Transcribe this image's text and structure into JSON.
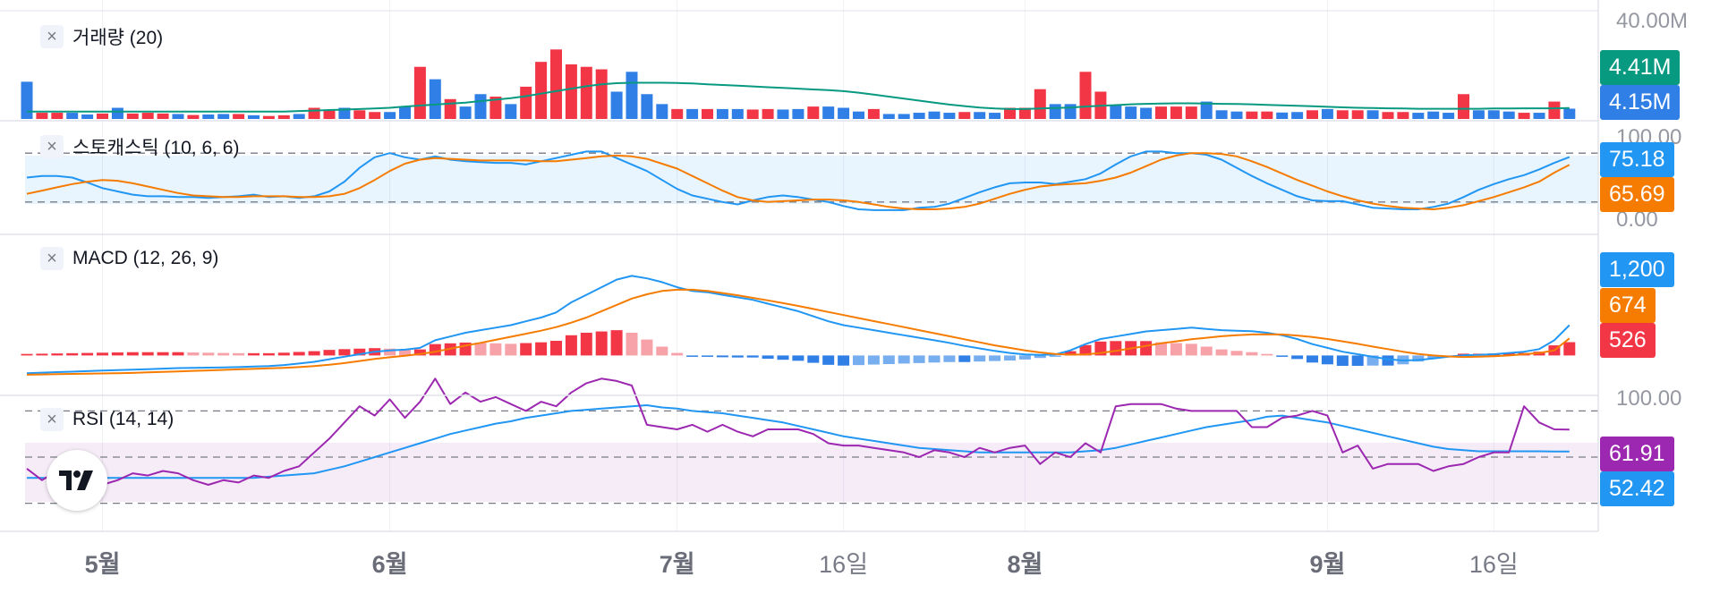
{
  "panes": [
    {
      "id": "volume",
      "label": "거래량 (20)"
    },
    {
      "id": "stoch",
      "label": "스토캐스틱 (10, 6, 6)"
    },
    {
      "id": "macd",
      "label": "MACD (12, 26, 9)"
    },
    {
      "id": "rsi",
      "label": "RSI (14, 14)"
    }
  ],
  "close_icon": "×",
  "scale_labels": {
    "volume_top": "40.00M",
    "stoch_top": "100.00",
    "stoch_bottom": "0.00",
    "rsi_top": "100.00"
  },
  "badges": {
    "volume_ma": {
      "text": "4.41M",
      "color": "#089981"
    },
    "volume": {
      "text": "4.15M",
      "color": "#2f7fe6"
    },
    "stoch_k": {
      "text": "75.18",
      "color": "#2196f3"
    },
    "stoch_d": {
      "text": "65.69",
      "color": "#f57c00"
    },
    "macd": {
      "text": "1,200",
      "color": "#2196f3"
    },
    "signal": {
      "text": "674",
      "color": "#f57c00"
    },
    "hist": {
      "text": "526",
      "color": "#f23645"
    },
    "rsi": {
      "text": "61.91",
      "color": "#9c27b0"
    },
    "rsi_ma": {
      "text": "52.42",
      "color": "#2196f3"
    }
  },
  "x_axis_labels": [
    {
      "text": "5월",
      "index": 5,
      "bold": true
    },
    {
      "text": "6월",
      "index": 24,
      "bold": true
    },
    {
      "text": "7월",
      "index": 43,
      "bold": true
    },
    {
      "text": "16일",
      "index": 54,
      "bold": false
    },
    {
      "text": "8월",
      "index": 66,
      "bold": true
    },
    {
      "text": "9월",
      "index": 86,
      "bold": true
    },
    {
      "text": "16일",
      "index": 97,
      "bold": false
    }
  ],
  "logo_icon": "tradingview-logo-icon",
  "chart_data": {
    "type": "line",
    "count": 103,
    "colors": {
      "up": "#f23645",
      "down": "#2f7fe6",
      "vol_ma": "#089981",
      "k": "#2196f3",
      "d": "#f57c00",
      "macd": "#2196f3",
      "signal": "#f57c00",
      "rsi": "#9c27b0",
      "rsi_ma": "#2196f3",
      "hist_up_strong": "#f23645",
      "hist_up_weak": "#f7a1a8",
      "hist_dn_strong": "#2f7fe6",
      "hist_dn_weak": "#77aef0"
    },
    "volume": {
      "ylim": [
        0,
        40
      ],
      "unit": "M",
      "values": [
        15,
        2.5,
        2.5,
        2.5,
        1.8,
        2.2,
        4.5,
        2.2,
        2.5,
        2.2,
        2,
        1.6,
        1.8,
        2,
        2,
        1.5,
        1.2,
        1.5,
        2,
        4.5,
        3.8,
        4.5,
        3.5,
        2.8,
        2.8,
        5,
        21,
        16,
        8,
        5,
        10,
        9,
        6,
        13,
        23,
        28,
        22,
        21,
        20,
        11,
        19,
        10,
        6,
        4,
        4,
        4,
        4,
        4,
        3.8,
        4,
        3.8,
        4,
        5,
        5,
        4.5,
        3,
        4,
        2,
        2,
        2.5,
        3,
        2.5,
        2.8,
        2.8,
        2.5,
        4.5,
        4.5,
        12,
        6,
        6,
        19,
        11,
        5.5,
        5,
        4.5,
        5,
        5,
        5,
        7,
        3.5,
        3,
        3,
        3,
        2.6,
        2.8,
        3.5,
        4,
        3.5,
        3.5,
        3.5,
        2.8,
        2.8,
        2.5,
        3,
        2.5,
        10,
        3.5,
        3.5,
        3,
        2.5,
        2.5,
        7,
        4.15
      ],
      "up": [
        0,
        1,
        1,
        0,
        0,
        1,
        0,
        1,
        1,
        1,
        0,
        1,
        0,
        0,
        1,
        0,
        1,
        1,
        0,
        1,
        1,
        0,
        1,
        1,
        0,
        0,
        1,
        0,
        1,
        0,
        0,
        1,
        0,
        1,
        1,
        1,
        1,
        1,
        1,
        0,
        0,
        0,
        0,
        1,
        0,
        1,
        0,
        0,
        1,
        1,
        0,
        0,
        1,
        0,
        0,
        0,
        1,
        0,
        0,
        0,
        0,
        0,
        1,
        0,
        0,
        1,
        1,
        1,
        0,
        0,
        1,
        1,
        0,
        0,
        0,
        1,
        1,
        1,
        0,
        0,
        0,
        1,
        1,
        0,
        0,
        1,
        0,
        1,
        1,
        0,
        1,
        1,
        0,
        0,
        0,
        1,
        0,
        0,
        0,
        1,
        0,
        1,
        0
      ],
      "ma": [
        3,
        3,
        3,
        3,
        3,
        3,
        3,
        3,
        3,
        3,
        3,
        3,
        3,
        3,
        3,
        3,
        3,
        3,
        3.2,
        3.4,
        3.6,
        3.8,
        4,
        4.2,
        4.5,
        5,
        5.4,
        5.8,
        6.2,
        6.6,
        7.2,
        7.8,
        8.4,
        9.2,
        10.2,
        11.2,
        12.2,
        13.2,
        14,
        14.4,
        14.6,
        14.6,
        14.6,
        14.5,
        14.3,
        14,
        13.7,
        13.4,
        13.1,
        12.8,
        12.5,
        12.2,
        11.9,
        11.6,
        11.2,
        10.6,
        9.8,
        9,
        8.2,
        7.4,
        6.6,
        5.8,
        5.2,
        4.6,
        4.2,
        4,
        4,
        4.2,
        4.4,
        4.6,
        5,
        5.3,
        5.6,
        5.9,
        6.1,
        6.2,
        6.3,
        6.3,
        6.2,
        6.1,
        6,
        5.9,
        5.7,
        5.5,
        5.3,
        5.1,
        4.9,
        4.7,
        4.5,
        4.4,
        4.3,
        4.2,
        4.1,
        4.1,
        4.1,
        4.1,
        4.1,
        4.2,
        4.2,
        4.3,
        4.3,
        4.3,
        4.41
      ]
    },
    "stochastic": {
      "ylim": [
        0,
        100
      ],
      "bands": [
        80,
        20
      ],
      "k": [
        50,
        52,
        52,
        50,
        44,
        37,
        33,
        29,
        27,
        27,
        26,
        26,
        25,
        26,
        27,
        29,
        26,
        27,
        25,
        27,
        33,
        45,
        62,
        75,
        80,
        75,
        72,
        76,
        72,
        70,
        69,
        68,
        68,
        66,
        70,
        74,
        78,
        82,
        82,
        74,
        66,
        58,
        47,
        36,
        28,
        24,
        20,
        17,
        22,
        26,
        28,
        26,
        23,
        20,
        15,
        11,
        10,
        10,
        10,
        13,
        14,
        18,
        25,
        32,
        38,
        43,
        44,
        44,
        42,
        45,
        48,
        55,
        66,
        76,
        82,
        82,
        80,
        80,
        78,
        72,
        62,
        52,
        43,
        35,
        27,
        22,
        21,
        21,
        17,
        13,
        12,
        11,
        11,
        14,
        18,
        26,
        35,
        42,
        48,
        53,
        60,
        68,
        75.18
      ],
      "d": [
        30,
        34,
        38,
        42,
        45,
        47,
        46,
        43,
        39,
        35,
        31,
        28,
        27,
        26,
        26,
        27,
        27,
        27,
        26,
        26,
        27,
        30,
        37,
        47,
        58,
        67,
        72,
        74,
        73,
        72,
        71,
        71,
        71,
        71,
        70,
        70,
        72,
        74,
        76,
        77,
        76,
        73,
        67,
        61,
        52,
        43,
        34,
        26,
        22,
        20,
        21,
        22,
        23,
        23,
        22,
        20,
        17,
        14,
        12,
        11,
        11,
        12,
        14,
        18,
        24,
        30,
        35,
        39,
        41,
        42,
        43,
        46,
        50,
        56,
        64,
        72,
        77,
        80,
        80,
        79,
        76,
        70,
        63,
        55,
        47,
        40,
        33,
        27,
        22,
        18,
        15,
        13,
        12,
        11,
        13,
        16,
        21,
        26,
        32,
        38,
        45,
        56,
        65.69
      ]
    },
    "macd": {
      "ylim": [
        -800,
        3800
      ],
      "macd": [
        -700,
        -680,
        -660,
        -640,
        -620,
        -600,
        -580,
        -560,
        -540,
        -520,
        -500,
        -490,
        -480,
        -470,
        -460,
        -440,
        -420,
        -380,
        -320,
        -250,
        -150,
        -50,
        50,
        150,
        200,
        230,
        300,
        600,
        750,
        900,
        1000,
        1100,
        1200,
        1350,
        1500,
        1700,
        2100,
        2400,
        2700,
        3000,
        3150,
        3050,
        2900,
        2700,
        2550,
        2500,
        2400,
        2300,
        2200,
        2050,
        1900,
        1750,
        1550,
        1350,
        1200,
        1100,
        1000,
        900,
        800,
        700,
        600,
        500,
        380,
        280,
        180,
        100,
        40,
        20,
        40,
        200,
        450,
        650,
        750,
        850,
        950,
        1000,
        1050,
        1100,
        1050,
        1000,
        980,
        960,
        900,
        800,
        650,
        450,
        300,
        150,
        50,
        -50,
        -150,
        -200,
        -180,
        -120,
        -50,
        10,
        20,
        50,
        100,
        150,
        250,
        600,
        1200
      ],
      "signal": [
        -760,
        -750,
        -740,
        -730,
        -720,
        -710,
        -700,
        -690,
        -670,
        -650,
        -630,
        -610,
        -590,
        -570,
        -550,
        -530,
        -510,
        -490,
        -460,
        -420,
        -370,
        -300,
        -220,
        -140,
        -70,
        -10,
        60,
        150,
        270,
        390,
        500,
        620,
        740,
        860,
        980,
        1120,
        1300,
        1500,
        1750,
        2000,
        2250,
        2420,
        2550,
        2600,
        2600,
        2550,
        2470,
        2380,
        2280,
        2180,
        2070,
        1960,
        1840,
        1720,
        1600,
        1480,
        1360,
        1240,
        1120,
        1000,
        880,
        760,
        640,
        520,
        400,
        300,
        200,
        120,
        60,
        30,
        40,
        100,
        180,
        280,
        380,
        480,
        560,
        640,
        700,
        760,
        800,
        830,
        840,
        830,
        790,
        730,
        650,
        560,
        460,
        350,
        250,
        150,
        60,
        0,
        -40,
        -60,
        -50,
        -30,
        0,
        50,
        100,
        200,
        674
      ]
    },
    "rsi": {
      "ylim": [
        0,
        100
      ],
      "bands": [
        70,
        50,
        30
      ],
      "rsi": [
        45,
        40,
        44,
        43,
        41,
        38,
        40,
        43,
        42,
        44,
        43,
        40,
        38,
        40,
        39,
        42,
        41,
        44,
        46,
        52,
        58,
        65,
        72,
        68,
        75,
        67,
        74,
        84,
        73,
        78,
        74,
        76,
        73,
        70,
        74,
        72,
        78,
        82,
        84,
        83,
        81,
        64,
        63,
        62,
        64,
        61,
        64,
        61,
        59,
        62,
        62,
        62,
        60,
        56,
        55,
        55,
        54,
        53,
        52,
        50,
        53,
        52,
        50,
        54,
        52,
        54,
        55,
        47,
        52,
        50,
        56,
        52,
        72,
        73,
        73,
        73,
        71,
        70,
        70,
        70,
        70,
        63,
        63,
        67,
        68,
        70,
        68,
        52,
        55,
        45,
        47,
        47,
        47,
        44,
        46,
        47,
        50,
        52,
        52,
        72,
        65,
        62,
        61.91
      ],
      "ma": [
        41,
        41,
        41,
        41,
        41,
        41,
        41,
        41,
        41,
        41,
        41,
        41,
        41,
        41,
        41,
        41,
        41.5,
        42,
        42.5,
        43,
        44.5,
        46,
        48,
        50,
        52,
        54,
        56,
        58,
        60,
        61.5,
        63,
        64.5,
        65.5,
        67,
        68,
        69,
        70,
        70.5,
        71,
        71.5,
        72,
        72.5,
        71.5,
        71,
        70,
        69.5,
        69,
        68,
        67,
        66,
        65,
        63.5,
        62,
        60.5,
        59,
        58,
        57,
        56,
        55,
        54,
        53.5,
        53,
        52.5,
        52,
        52,
        52,
        52,
        52,
        52,
        52,
        52.5,
        53,
        54,
        55.5,
        57,
        58.5,
        60,
        61.5,
        63,
        64,
        65,
        66,
        67.5,
        68,
        67,
        66,
        65,
        63.5,
        62,
        60.5,
        59,
        57.5,
        56,
        54.5,
        53.5,
        53,
        52.5,
        52.5,
        52.5,
        52.5,
        52.5,
        52.4,
        52.42
      ]
    }
  }
}
